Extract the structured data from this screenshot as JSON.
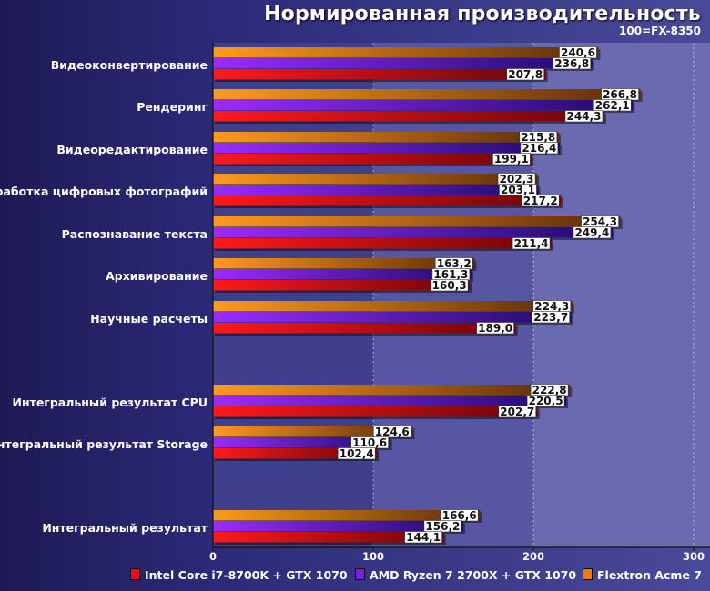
{
  "title": "Нормированная производительность",
  "subtitle": "100=FX-8350",
  "chart_data": {
    "type": "bar",
    "orientation": "horizontal",
    "title": "Нормированная производительность",
    "subtitle": "100=FX-8350",
    "xlim": [
      0,
      300
    ],
    "xticks": [
      0,
      100,
      200,
      300
    ],
    "categories": [
      "Видеоконвертирование",
      "Рендеринг",
      "Видеоредактирование",
      "Обработка цифровых фотографий",
      "Распознавание текста",
      "Архивирование",
      "Научные расчеты",
      "Интегральный результат CPU",
      "Интегральный результат Storage",
      "Интегральный результат"
    ],
    "series": [
      {
        "name": "Flextron Acme 7",
        "color": "#f07810",
        "values": [
          240.6,
          266.8,
          215.8,
          202.3,
          254.3,
          163.2,
          224.3,
          222.8,
          124.6,
          166.6
        ],
        "labels": [
          "240,6",
          "266,8",
          "215,8",
          "202,3",
          "254,3",
          "163,2",
          "224,3",
          "222,8",
          "124,6",
          "166,6"
        ]
      },
      {
        "name": "AMD Ryzen 7 2700X + GTX 1070",
        "color": "#7a20d8",
        "values": [
          236.8,
          262.1,
          216.4,
          203.1,
          249.4,
          161.3,
          223.7,
          220.5,
          110.6,
          156.2
        ],
        "labels": [
          "236,8",
          "262,1",
          "216,4",
          "203,1",
          "249,4",
          "161,3",
          "223,7",
          "220,5",
          "110,6",
          "156,2"
        ]
      },
      {
        "name": "Intel Core i7-8700K + GTX 1070",
        "color": "#e0101c",
        "values": [
          207.8,
          244.3,
          199.1,
          217.2,
          211.4,
          160.3,
          189.0,
          202.7,
          102.4,
          144.1
        ],
        "labels": [
          "207,8",
          "244,3",
          "199,1",
          "217,2",
          "211,4",
          "160,3",
          "189,0",
          "202,7",
          "102,4",
          "144,1"
        ]
      }
    ],
    "legend": [
      {
        "name": "Intel Core i7-8700K + GTX 1070",
        "color": "#e0101c"
      },
      {
        "name": "AMD Ryzen 7 2700X + GTX 1070",
        "color": "#7a20d8"
      },
      {
        "name": "Flextron Acme 7",
        "color": "#f07810"
      }
    ],
    "legend_position": "bottom"
  }
}
